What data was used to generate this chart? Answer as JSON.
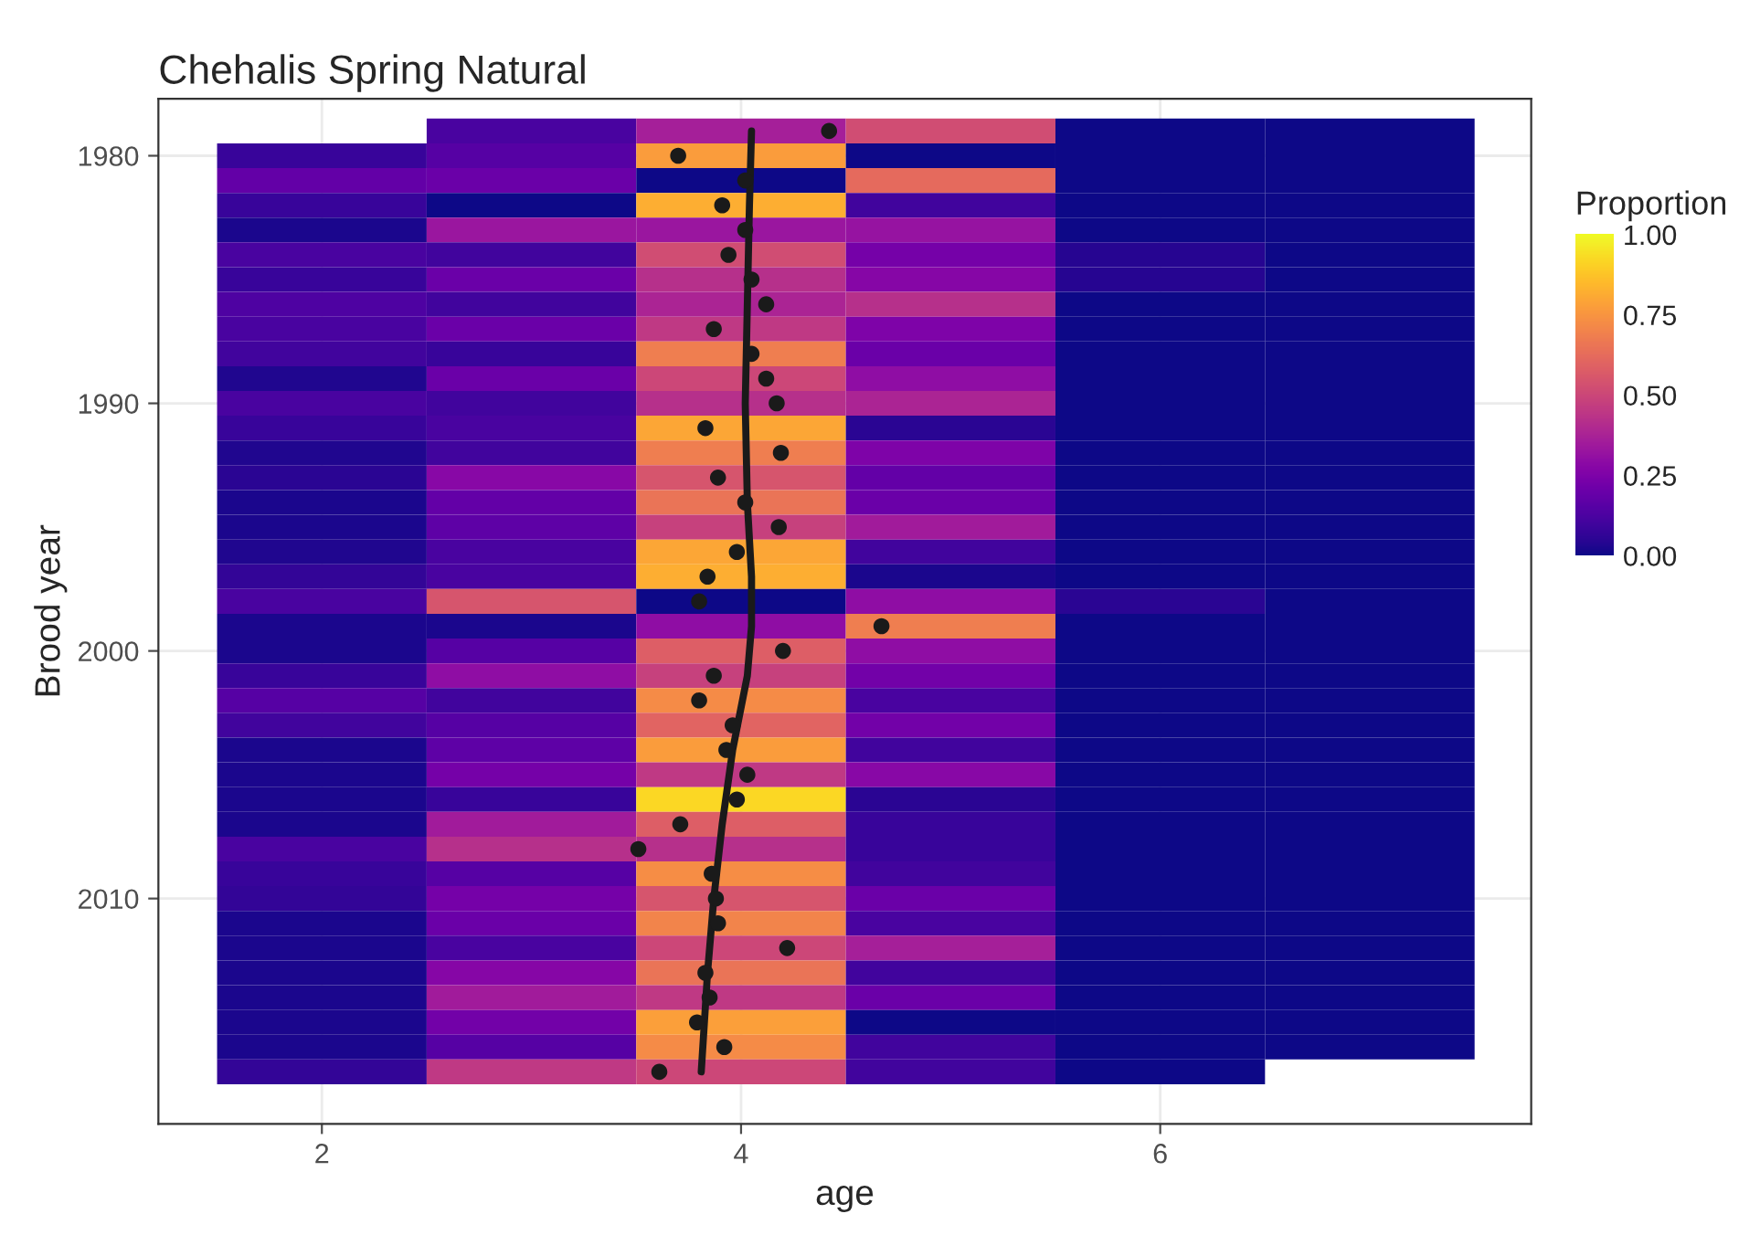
{
  "chart_data": {
    "type": "heatmap",
    "title": "Chehalis Spring Natural",
    "xlabel": "age",
    "ylabel": "Brood year",
    "clabel": "Proportion",
    "x": [
      2,
      3,
      4,
      5,
      6,
      7
    ],
    "y": [
      1979,
      1980,
      1981,
      1982,
      1983,
      1984,
      1985,
      1986,
      1987,
      1988,
      1989,
      1990,
      1991,
      1992,
      1993,
      1994,
      1995,
      1996,
      1997,
      1998,
      1999,
      2000,
      2001,
      2002,
      2003,
      2004,
      2005,
      2006,
      2007,
      2008,
      2009,
      2010,
      2011,
      2012,
      2013,
      2014,
      2015,
      2016,
      2017
    ],
    "cells": [
      [
        null,
        0.12,
        0.36,
        0.52,
        0,
        0
      ],
      [
        0.08,
        0.15,
        0.77,
        0,
        0,
        0
      ],
      [
        0.18,
        0.2,
        0,
        0.62,
        0,
        0
      ],
      [
        0.08,
        0,
        0.82,
        0.1,
        0,
        0
      ],
      [
        0.02,
        0.33,
        0.33,
        0.32,
        0,
        0
      ],
      [
        0.12,
        0.1,
        0.52,
        0.23,
        0.04,
        0
      ],
      [
        0.08,
        0.2,
        0.42,
        0.27,
        0.04,
        0
      ],
      [
        0.13,
        0.1,
        0.38,
        0.42,
        0,
        0
      ],
      [
        0.12,
        0.2,
        0.45,
        0.25,
        0,
        0
      ],
      [
        0.1,
        0.08,
        0.68,
        0.2,
        0,
        0
      ],
      [
        0.03,
        0.2,
        0.5,
        0.3,
        0,
        0
      ],
      [
        0.12,
        0.1,
        0.42,
        0.38,
        0,
        0
      ],
      [
        0.08,
        0.12,
        0.8,
        0.05,
        0,
        0
      ],
      [
        0.03,
        0.1,
        0.68,
        0.25,
        0,
        0
      ],
      [
        0.05,
        0.28,
        0.55,
        0.18,
        0,
        0
      ],
      [
        0.02,
        0.18,
        0.65,
        0.2,
        0,
        0
      ],
      [
        0.02,
        0.17,
        0.48,
        0.35,
        0,
        0
      ],
      [
        0.03,
        0.12,
        0.8,
        0.1,
        0,
        0
      ],
      [
        0.07,
        0.12,
        0.82,
        0.02,
        0,
        0
      ],
      [
        0.12,
        0.55,
        0,
        0.3,
        0.05,
        0
      ],
      [
        0.02,
        0.02,
        0.3,
        0.68,
        0,
        0
      ],
      [
        0.02,
        0.15,
        0.58,
        0.3,
        0,
        0
      ],
      [
        0.08,
        0.3,
        0.48,
        0.22,
        0,
        0
      ],
      [
        0.15,
        0.1,
        0.72,
        0.12,
        0,
        0
      ],
      [
        0.1,
        0.15,
        0.6,
        0.22,
        0,
        0
      ],
      [
        0.02,
        0.17,
        0.77,
        0.1,
        0,
        0
      ],
      [
        0.02,
        0.23,
        0.45,
        0.28,
        0,
        0
      ],
      [
        0.02,
        0.08,
        0.92,
        0.05,
        0,
        0
      ],
      [
        0.02,
        0.35,
        0.58,
        0.08,
        0,
        0
      ],
      [
        0.12,
        0.42,
        0.42,
        0.08,
        0,
        0
      ],
      [
        0.08,
        0.15,
        0.73,
        0.1,
        0,
        0
      ],
      [
        0.07,
        0.23,
        0.55,
        0.2,
        0,
        0
      ],
      [
        0.02,
        0.2,
        0.7,
        0.12,
        0,
        0
      ],
      [
        0.02,
        0.12,
        0.5,
        0.36,
        0,
        0
      ],
      [
        0.02,
        0.27,
        0.65,
        0.1,
        0,
        0
      ],
      [
        0.02,
        0.35,
        0.45,
        0.2,
        0,
        0
      ],
      [
        0.02,
        0.22,
        0.78,
        0,
        0,
        0
      ],
      [
        0.02,
        0.15,
        0.72,
        0.1,
        0,
        0
      ],
      [
        0.07,
        0.45,
        0.5,
        0.1,
        0,
        null
      ]
    ],
    "clim": [
      0,
      1
    ],
    "cticks": [
      {
        "value": 0,
        "label": "0.00"
      },
      {
        "value": 0.25,
        "label": "0.25"
      },
      {
        "value": 0.5,
        "label": "0.50"
      },
      {
        "value": 0.75,
        "label": "0.75"
      },
      {
        "value": 1,
        "label": "1.00"
      }
    ],
    "series": [
      {
        "type": "scatter",
        "color": "#1a1a1a",
        "x": [
          4.42,
          3.7,
          4.02,
          3.91,
          4.02,
          3.94,
          4.05,
          4.12,
          3.87,
          4.05,
          4.12,
          4.17,
          3.83,
          4.19,
          3.89,
          4.02,
          4.18,
          3.98,
          3.84,
          3.8,
          4.67,
          4.2,
          3.87,
          3.8,
          3.96,
          3.93,
          4.03,
          3.98,
          3.71,
          3.51,
          3.86,
          3.88,
          3.89,
          4.22,
          3.83,
          3.85,
          3.79,
          3.92,
          3.61
        ],
        "values": [
          1979,
          1980,
          1981,
          1982,
          1983,
          1984,
          1985,
          1986,
          1987,
          1988,
          1989,
          1990,
          1991,
          1992,
          1993,
          1994,
          1995,
          1996,
          1997,
          1998,
          1999,
          2000,
          2001,
          2002,
          2003,
          2004,
          2005,
          2006,
          2007,
          2008,
          2009,
          2010,
          2011,
          2012,
          2013,
          2014,
          2015,
          2016,
          2017
        ]
      },
      {
        "type": "line",
        "color": "#1a1a1a",
        "x": [
          4.05,
          4.04,
          4.03,
          4.02,
          4.03,
          4.05,
          4.05,
          4.03,
          3.96,
          3.91,
          3.87,
          3.84,
          3.81
        ],
        "values": [
          1979,
          1982,
          1986,
          1990,
          1994,
          1997,
          1999,
          2001,
          2004,
          2007,
          2010,
          2013,
          2017
        ]
      }
    ],
    "xlim": [
      1.22,
      7.77
    ],
    "ylim": [
      2019.1,
      1977.7
    ],
    "xticks": [
      2,
      4,
      6
    ],
    "yticks": [
      1980,
      1990,
      2000,
      2010
    ],
    "grid": true
  }
}
